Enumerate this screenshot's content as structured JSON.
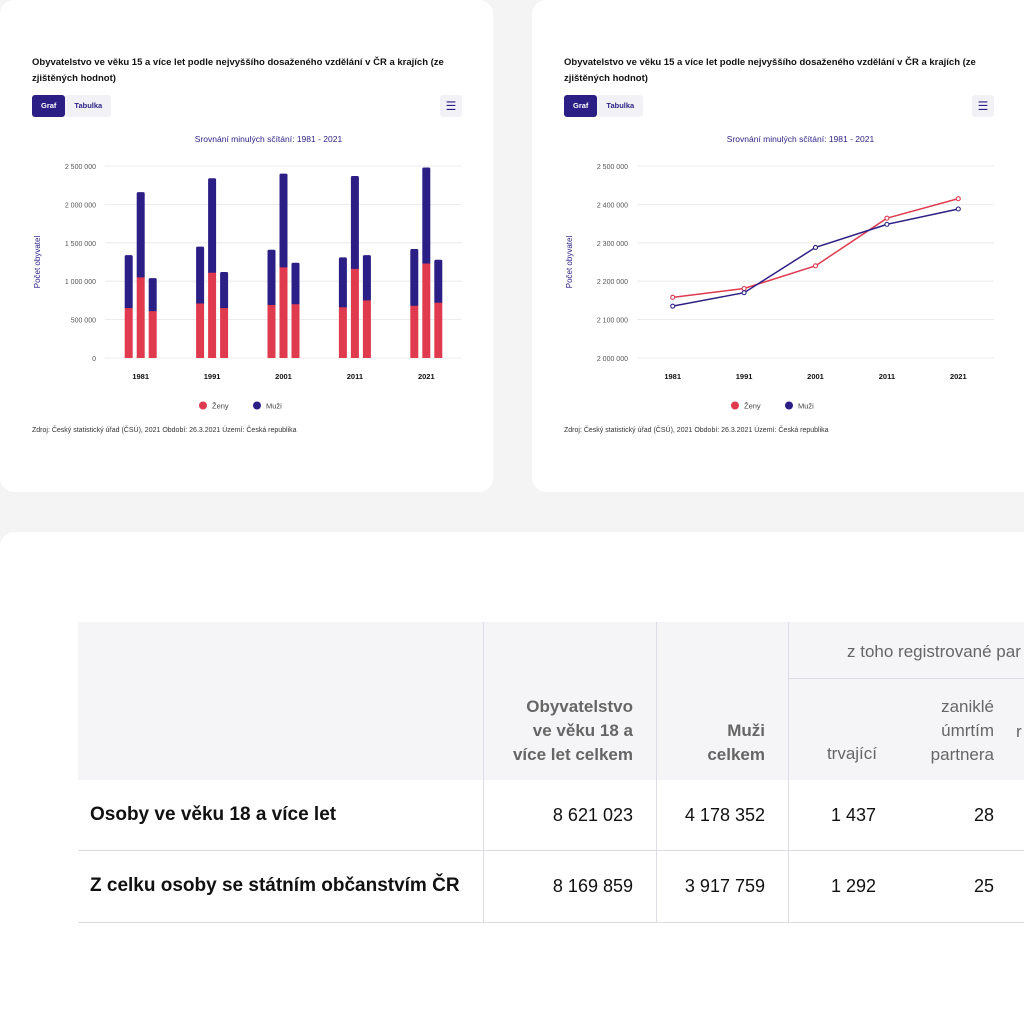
{
  "charts": [
    {
      "title": "Obyvatelstvo ve věku 15 a více let podle nejvyššího dosaženého vzdělání v ČR a krajích (ze zjištěných hodnot)",
      "tabs": [
        "Graf",
        "Tabulka"
      ],
      "menu_icon": "hamburger-menu-icon",
      "source": "Zdroj: Český statistický úřad (ČSÚ), 2021   Období: 26.3.2021   Území: Česká republika"
    },
    {
      "title": "Obyvatelstvo ve věku 15 a více let podle nejvyššího dosaženého vzdělání v ČR a krajích (ze zjištěných hodnot)",
      "tabs": [
        "Graf",
        "Tabulka"
      ],
      "menu_icon": "hamburger-menu-icon",
      "source": "Zdroj: Český statistický úřad (ČSÚ), 2021   Období: 26.3.2021   Území: Česká republika"
    }
  ],
  "chart_data": [
    {
      "type": "bar",
      "stacked": true,
      "subtitle": "Srovnání minulých sčítání: 1981 - 2021",
      "ylabel": "Počet obyvatel",
      "xlabel": "",
      "ylim": [
        0,
        2500000
      ],
      "yticks": [
        "0",
        "500 000",
        "1 000 000",
        "1 500 000",
        "2 000 000",
        "2 500 000"
      ],
      "yticks_values": [
        0,
        500000,
        1000000,
        1500000,
        2000000,
        2500000
      ],
      "grid": true,
      "legend_position": "bottom",
      "categories": [
        "1981",
        "1991",
        "2001",
        "2011",
        "2021"
      ],
      "groups": [
        {
          "zeny": [
            650000,
            1050000,
            610000
          ],
          "muzi": [
            690000,
            1110000,
            430000
          ]
        },
        {
          "zeny": [
            710000,
            1110000,
            650000
          ],
          "muzi": [
            740000,
            1230000,
            470000
          ]
        },
        {
          "zeny": [
            690000,
            1180000,
            700000
          ],
          "muzi": [
            720000,
            1220000,
            540000
          ]
        },
        {
          "zeny": [
            660000,
            1160000,
            750000
          ],
          "muzi": [
            650000,
            1210000,
            590000
          ]
        },
        {
          "zeny": [
            680000,
            1230000,
            720000
          ],
          "muzi": [
            740000,
            1250000,
            560000
          ]
        }
      ],
      "series": [
        {
          "name": "Ženy",
          "color": "#e03a4e"
        },
        {
          "name": "Muži",
          "color": "#2b1f86"
        }
      ]
    },
    {
      "type": "line",
      "subtitle": "Srovnání minulých sčítání: 1981 - 2021",
      "ylabel": "Počet obyvatel",
      "xlabel": "",
      "ylim": [
        2000000,
        2500000
      ],
      "yticks": [
        "2 000 000",
        "2 100 000",
        "2 200 000",
        "2 300 000",
        "2 400 000",
        "2 500 000"
      ],
      "yticks_values": [
        2000000,
        2100000,
        2200000,
        2300000,
        2400000,
        2500000
      ],
      "grid": true,
      "legend_position": "bottom",
      "categories": [
        "1981",
        "1991",
        "2001",
        "2011",
        "2021"
      ],
      "series": [
        {
          "name": "Ženy",
          "color": "#e03a4e",
          "values": [
            2158000,
            2181000,
            2240000,
            2364000,
            2415000
          ]
        },
        {
          "name": "Muži",
          "color": "#2b1f86",
          "values": [
            2135000,
            2170000,
            2288000,
            2348000,
            2388000
          ]
        }
      ]
    }
  ],
  "table": {
    "headers": {
      "group": "z toho registrované par",
      "col1": [
        "Obyvatelstvo",
        "ve věku 18 a",
        "více let celkem"
      ],
      "col2": [
        "Muži",
        "celkem"
      ],
      "col3": "trvající",
      "col4": [
        "zaniklé",
        "úmrtím",
        "partnera"
      ],
      "col5": "r"
    },
    "rows": [
      {
        "label": "Osoby ve věku 18 a více let",
        "c1": "8 621 023",
        "c2": "4 178 352",
        "c3": "1 437",
        "c4": "28"
      },
      {
        "label": "Z celku osoby se státním občanstvím ČR",
        "c1": "8 169 859",
        "c2": "3 917 759",
        "c3": "1 292",
        "c4": "25"
      }
    ]
  }
}
